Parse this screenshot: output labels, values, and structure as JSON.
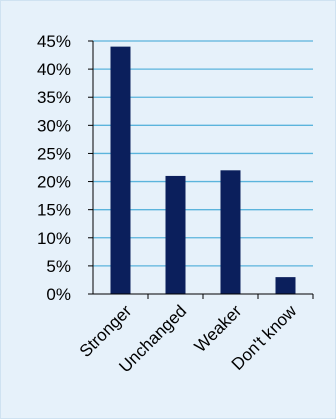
{
  "chart_data": {
    "type": "bar",
    "categories": [
      "Stronger",
      "Unchanged",
      "Weaker",
      "Don't know"
    ],
    "values": [
      44,
      21,
      22,
      3
    ],
    "y_ticks": [
      "0%",
      "5%",
      "10%",
      "15%",
      "20%",
      "25%",
      "30%",
      "35%",
      "40%",
      "45%"
    ],
    "ylim": [
      0,
      45
    ],
    "grid": true,
    "legend": "none",
    "colors": {
      "bar": "#0b1f5c",
      "grid": "#5bb4dc",
      "axis": "#000000",
      "background": "#e6f1fa"
    }
  }
}
